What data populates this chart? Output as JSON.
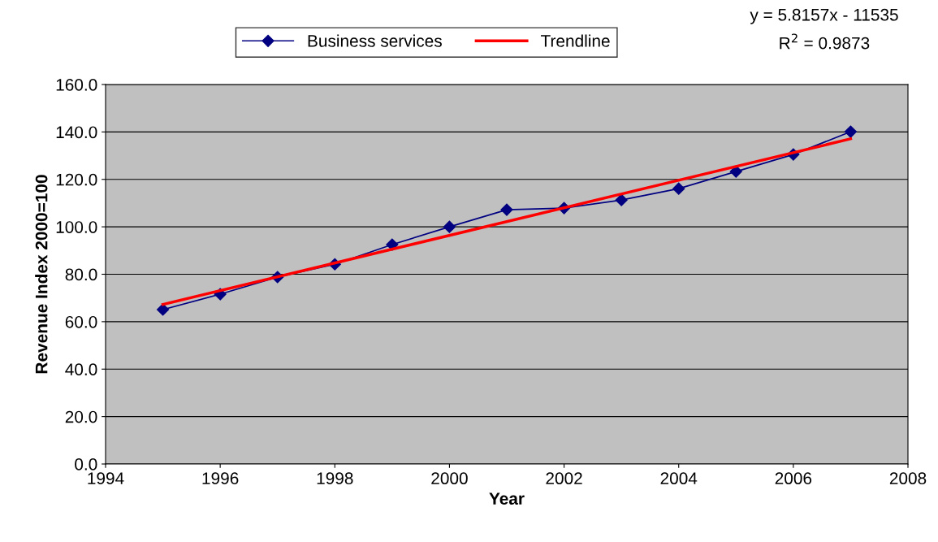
{
  "chart_data": {
    "type": "line",
    "xlabel": "Year",
    "ylabel": "Revenue Index 2000=100",
    "x": [
      1995,
      1996,
      1997,
      1998,
      1999,
      2000,
      2001,
      2002,
      2003,
      2004,
      2005,
      2006,
      2007
    ],
    "series": [
      {
        "name": "Business services",
        "color": "#000080",
        "marker": "diamond",
        "values": [
          65.1,
          71.6,
          78.8,
          84.2,
          92.5,
          100.0,
          107.2,
          107.9,
          111.3,
          116.1,
          123.3,
          130.5,
          140.1
        ]
      },
      {
        "name": "Trendline",
        "color": "#ff0000",
        "marker": "none",
        "x": [
          1995,
          2007
        ],
        "values": [
          67.3,
          137.1
        ]
      }
    ],
    "xlim": [
      1994,
      2008
    ],
    "xticks": [
      1994,
      1996,
      1998,
      2000,
      2002,
      2004,
      2006,
      2008
    ],
    "ylim": [
      0,
      160
    ],
    "yticks": [
      {
        "value": 0,
        "label": "0.0"
      },
      {
        "value": 20,
        "label": "20.0"
      },
      {
        "value": 40,
        "label": "40.0"
      },
      {
        "value": 60,
        "label": "60.0"
      },
      {
        "value": 80,
        "label": "80.0"
      },
      {
        "value": 100,
        "label": "100.0"
      },
      {
        "value": 120,
        "label": "120.0"
      },
      {
        "value": 140,
        "label": "140.0"
      },
      {
        "value": 160,
        "label": "160.0"
      }
    ],
    "grid": "y",
    "legend": "top",
    "line_style": "solid",
    "annotations": [
      "y = 5.8157x - 11535",
      "R$^{2}$ = 0.9873"
    ]
  }
}
